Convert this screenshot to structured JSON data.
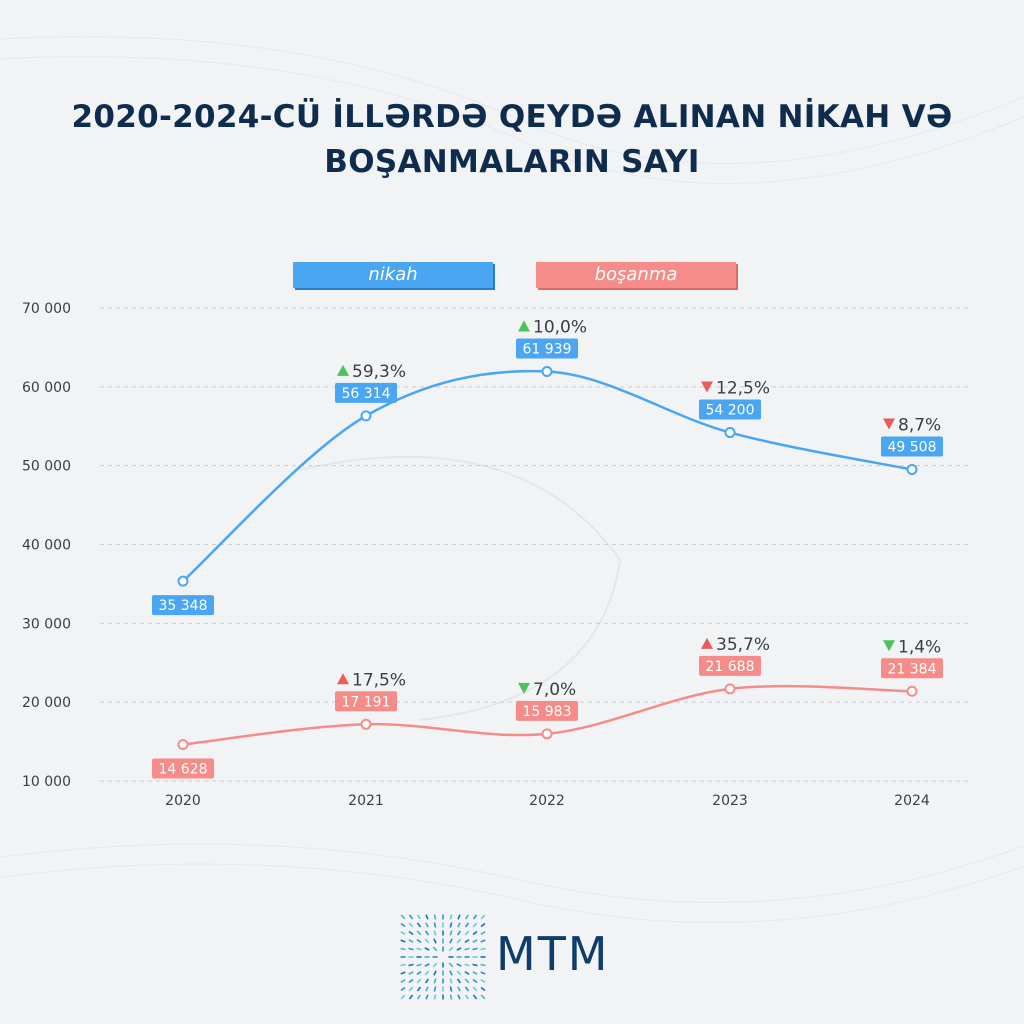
{
  "title_line1": "2020-2024-CÜ İLLƏRDƏ QEYDƏ ALINAN NİKAH VƏ",
  "title_line2": "BOŞANMALARIN SAYI",
  "logo_text": "MTM",
  "colors": {
    "nikah": "#4aa6f2",
    "bosanma": "#f58c89",
    "up": "#4cc25a",
    "down": "#e85c5c",
    "title": "#0e2d4e"
  },
  "chart_data": {
    "type": "line",
    "title": "2020-2024-CÜ İLLƏRDƏ QEYDƏ ALINAN NİKAH VƏ BOŞANMALARIN SAYI",
    "categories": [
      "2020",
      "2021",
      "2022",
      "2023",
      "2024"
    ],
    "ylim": [
      10000,
      70000
    ],
    "yticks": [
      10000,
      20000,
      30000,
      40000,
      50000,
      60000,
      70000
    ],
    "ytick_labels": [
      "10 000",
      "20 000",
      "30 000",
      "40 000",
      "50 000",
      "60 000",
      "70 000"
    ],
    "grid": true,
    "legend_position": "top-center",
    "series": [
      {
        "name": "nikah",
        "values": [
          35348,
          56314,
          61939,
          54200,
          49508
        ],
        "labels": [
          "35 348",
          "56 314",
          "61 939",
          "54 200",
          "49 508"
        ],
        "changes": [
          null,
          "59,3%",
          "10,0%",
          "12,5%",
          "8,7%"
        ],
        "directions": [
          null,
          "up",
          "up",
          "down",
          "down"
        ]
      },
      {
        "name": "boşanma",
        "values": [
          14628,
          17191,
          15983,
          21688,
          21384
        ],
        "labels": [
          "14 628",
          "17 191",
          "15 983",
          "21 688",
          "21 384"
        ],
        "changes": [
          null,
          "17,5%",
          "7,0%",
          "35,7%",
          "1,4%"
        ],
        "directions": [
          null,
          "up",
          "down",
          "up",
          "down"
        ]
      }
    ]
  }
}
